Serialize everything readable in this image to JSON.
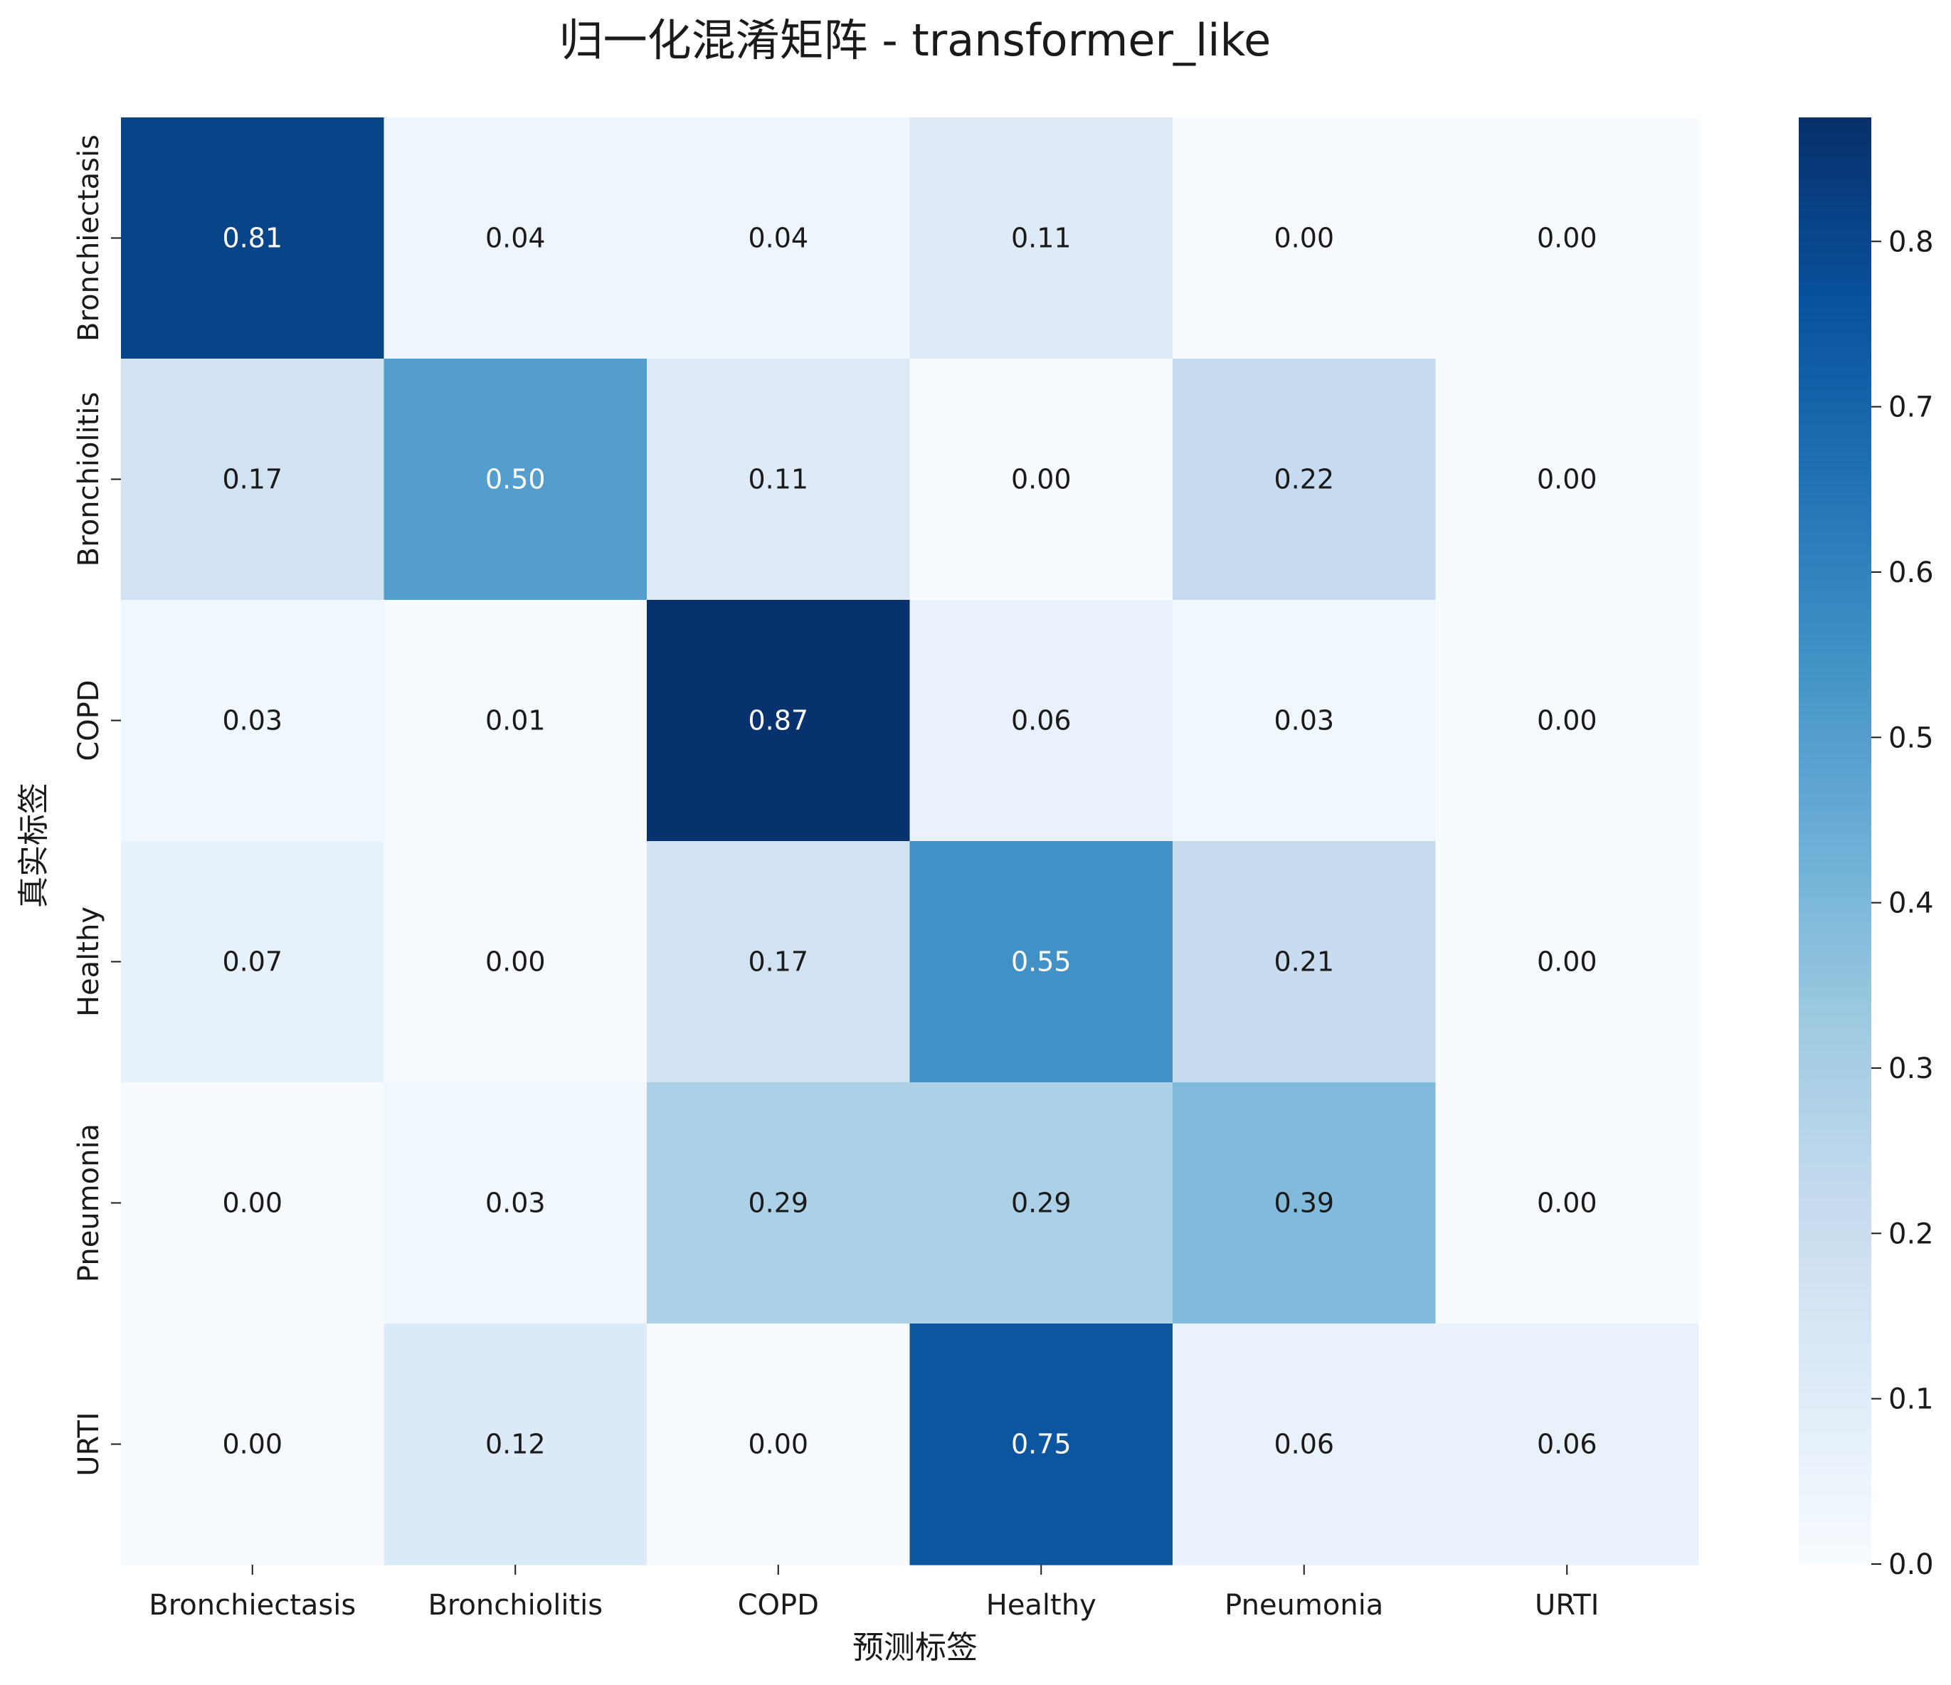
{
  "chart_data": {
    "type": "heatmap",
    "title": "归一化混淆矩阵 - transformer_like",
    "xlabel": "预测标签",
    "ylabel": "真实标签",
    "x_categories": [
      "Bronchiectasis",
      "Bronchiolitis",
      "COPD",
      "Healthy",
      "Pneumonia",
      "URTI"
    ],
    "y_categories": [
      "Bronchiectasis",
      "Bronchiolitis",
      "COPD",
      "Healthy",
      "Pneumonia",
      "URTI"
    ],
    "values": [
      [
        0.81,
        0.04,
        0.04,
        0.11,
        0.0,
        0.0
      ],
      [
        0.17,
        0.5,
        0.11,
        0.0,
        0.22,
        0.0
      ],
      [
        0.03,
        0.01,
        0.87,
        0.06,
        0.03,
        0.0
      ],
      [
        0.07,
        0.0,
        0.17,
        0.55,
        0.21,
        0.0
      ],
      [
        0.0,
        0.03,
        0.29,
        0.29,
        0.39,
        0.0
      ],
      [
        0.0,
        0.12,
        0.0,
        0.75,
        0.06,
        0.06
      ]
    ],
    "value_format": "0.00",
    "colormap": "Blues",
    "colorbar": {
      "min": 0.0,
      "max": 0.875,
      "ticks": [
        0.0,
        0.1,
        0.2,
        0.3,
        0.4,
        0.5,
        0.6,
        0.7,
        0.8
      ],
      "tick_labels": [
        "0.0",
        "0.1",
        "0.2",
        "0.3",
        "0.4",
        "0.5",
        "0.6",
        "0.7",
        "0.8"
      ]
    },
    "colors": {
      "blues_low": "#f7fbff",
      "blues_high": "#08306b",
      "text_dark": "#1a1a1a",
      "text_light": "#ffffff"
    }
  }
}
